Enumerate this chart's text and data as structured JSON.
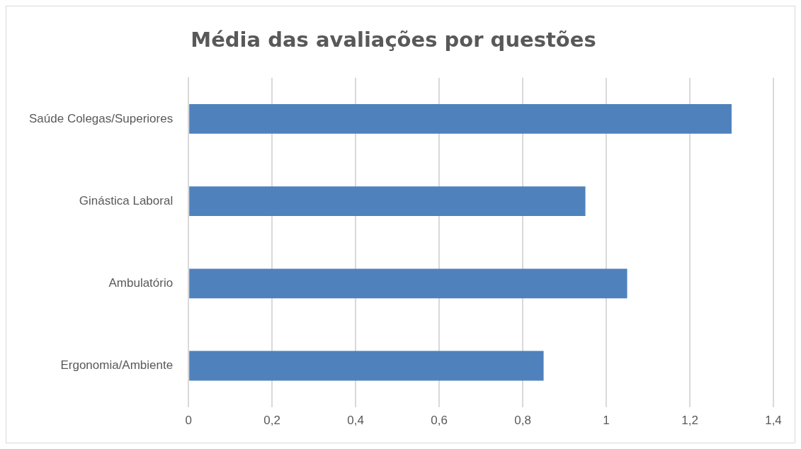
{
  "chart_data": {
    "type": "bar",
    "orientation": "horizontal",
    "title": "Média das avaliações por questões",
    "categories": [
      "Saúde Colegas/Superiores",
      "Ginástica Laboral",
      "Ambulatório",
      "Ergonomia/Ambiente"
    ],
    "values": [
      1.3,
      0.95,
      1.05,
      0.85
    ],
    "color": "#4f81bd",
    "xlim": [
      0,
      1.4
    ],
    "xticks": [
      0,
      {
        "value": 0.2,
        "label": "0,2"
      },
      {
        "value": 0.4,
        "label": "0,4"
      },
      {
        "value": 0.6,
        "label": "0,6"
      },
      {
        "value": 0.8,
        "label": "0,8"
      },
      1,
      {
        "value": 1.2,
        "label": "1,2"
      },
      {
        "value": 1.4,
        "label": "1,4"
      }
    ],
    "grid": "x",
    "legend": false
  }
}
